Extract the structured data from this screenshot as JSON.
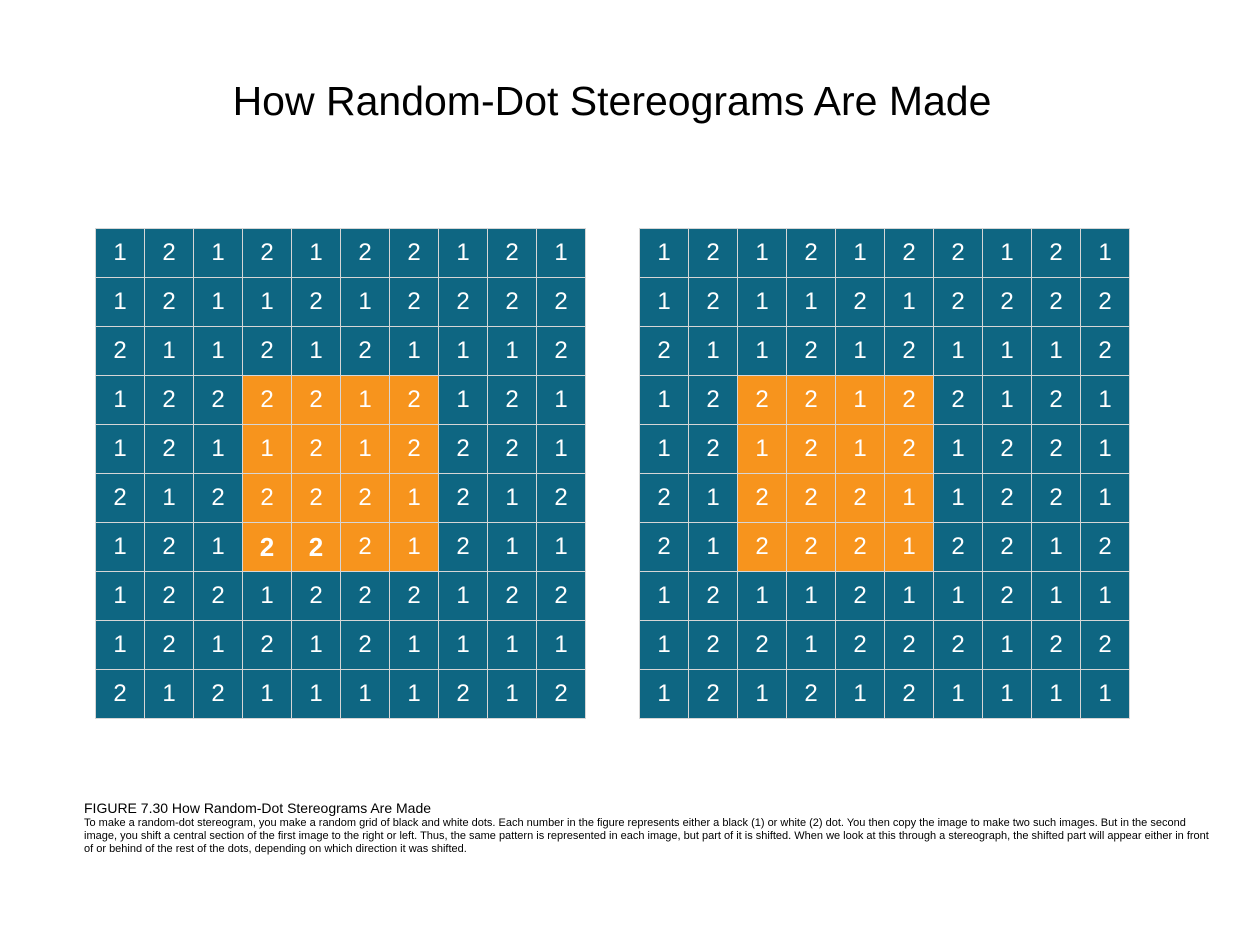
{
  "title": "How Random-Dot Stereograms Are Made",
  "colors": {
    "cell": "#0e6682",
    "shifted": "#f7941d",
    "digit": "#ffffff",
    "gridline": "#d6d6d6"
  },
  "left_grid": {
    "rows": [
      [
        "1",
        "2",
        "1",
        "2",
        "1",
        "2",
        "2",
        "1",
        "2",
        "1"
      ],
      [
        "1",
        "2",
        "1",
        "1",
        "2",
        "1",
        "2",
        "2",
        "2",
        "2"
      ],
      [
        "2",
        "1",
        "1",
        "2",
        "1",
        "2",
        "1",
        "1",
        "1",
        "2"
      ],
      [
        "1",
        "2",
        "2",
        "2",
        "2",
        "1",
        "2",
        "1",
        "2",
        "1"
      ],
      [
        "1",
        "2",
        "1",
        "1",
        "2",
        "1",
        "2",
        "2",
        "2",
        "1"
      ],
      [
        "2",
        "1",
        "2",
        "2",
        "2",
        "2",
        "1",
        "2",
        "1",
        "2"
      ],
      [
        "1",
        "2",
        "1",
        "2",
        "2",
        "2",
        "1",
        "2",
        "1",
        "1"
      ],
      [
        "1",
        "2",
        "2",
        "1",
        "2",
        "2",
        "2",
        "1",
        "2",
        "2"
      ],
      [
        "1",
        "2",
        "1",
        "2",
        "1",
        "2",
        "1",
        "1",
        "1",
        "1"
      ],
      [
        "2",
        "1",
        "2",
        "1",
        "1",
        "1",
        "1",
        "2",
        "1",
        "2"
      ]
    ],
    "highlight": {
      "rows": [
        3,
        4,
        5,
        6
      ],
      "cols": [
        3,
        4,
        5,
        6
      ]
    },
    "bold_cells": [
      [
        6,
        3
      ],
      [
        6,
        4
      ]
    ]
  },
  "right_grid": {
    "rows": [
      [
        "1",
        "2",
        "1",
        "2",
        "1",
        "2",
        "2",
        "1",
        "2",
        "1"
      ],
      [
        "1",
        "2",
        "1",
        "1",
        "2",
        "1",
        "2",
        "2",
        "2",
        "2"
      ],
      [
        "2",
        "1",
        "1",
        "2",
        "1",
        "2",
        "1",
        "1",
        "1",
        "2"
      ],
      [
        "1",
        "2",
        "2",
        "2",
        "1",
        "2",
        "2",
        "1",
        "2",
        "1"
      ],
      [
        "1",
        "2",
        "1",
        "2",
        "1",
        "2",
        "1",
        "2",
        "2",
        "1"
      ],
      [
        "2",
        "1",
        "2",
        "2",
        "2",
        "1",
        "1",
        "2",
        "2",
        "1"
      ],
      [
        "2",
        "1",
        "2",
        "2",
        "2",
        "1",
        "2",
        "2",
        "1",
        "2"
      ],
      [
        "1",
        "2",
        "1",
        "1",
        "2",
        "1",
        "1",
        "2",
        "1",
        "1"
      ],
      [
        "1",
        "2",
        "2",
        "1",
        "2",
        "2",
        "2",
        "1",
        "2",
        "2"
      ],
      [
        "1",
        "2",
        "1",
        "2",
        "1",
        "2",
        "1",
        "1",
        "1",
        "1"
      ]
    ],
    "highlight": {
      "rows": [
        3,
        4,
        5,
        6
      ],
      "cols": [
        2,
        3,
        4,
        5
      ]
    },
    "bold_cells": []
  },
  "caption": {
    "title": "FIGURE 7.30 How Random-Dot Stereograms Are Made",
    "text": "To make a random-dot stereogram, you make a random grid of black and white dots. Each number in the figure represents either a black (1) or white (2) dot. You then copy the image  to make two such images. But in the second image, you shift a central section of the first image to the right or left. Thus, the same pattern is represented in each image, but part of it is shifted. When we look at this through a stereograph, the shifted part will appear either in front of or behind of the rest of the dots, depending on which direction it was shifted."
  }
}
